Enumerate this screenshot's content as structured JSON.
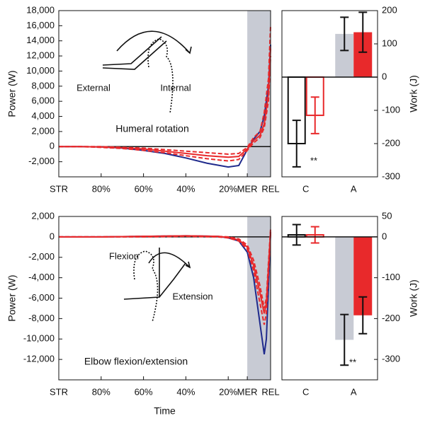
{
  "chart_data": [
    {
      "type": "line",
      "ylabel": "Power (W)",
      "annotations": [
        "External",
        "Internal",
        "Humeral rotation"
      ],
      "xlim": [
        0,
        100
      ],
      "ylim": [
        -4000,
        18000
      ],
      "xticks": [
        {
          "value": 0,
          "label": "STR"
        },
        {
          "value": 20,
          "label": "80%"
        },
        {
          "value": 40,
          "label": "60%"
        },
        {
          "value": 60,
          "label": "40%"
        },
        {
          "value": 80,
          "label": "20%"
        },
        {
          "value": 89,
          "label": "MER"
        },
        {
          "value": 100,
          "label": "REL"
        }
      ],
      "yticks": [
        {
          "value": -2000,
          "label": "-2,000"
        },
        0,
        {
          "value": 2000,
          "label": "2,000"
        },
        {
          "value": 4000,
          "label": "4,000"
        },
        {
          "value": 6000,
          "label": "6,000"
        },
        {
          "value": 8000,
          "label": "8,000"
        },
        {
          "value": 10000,
          "label": "10,000"
        },
        {
          "value": 12000,
          "label": "12,000"
        },
        {
          "value": 14000,
          "label": "14,000"
        },
        {
          "value": 16000,
          "label": "16,000"
        },
        {
          "value": 18000,
          "label": "18,000"
        }
      ],
      "shaded": [
        89,
        100
      ],
      "shade_color": "#c8cbd4",
      "x": [
        0,
        10,
        20,
        30,
        40,
        50,
        60,
        70,
        80,
        85,
        89,
        92,
        95,
        97,
        99,
        100
      ],
      "series": [
        {
          "color": "#1f2a8c",
          "dashed": false,
          "values": [
            0,
            0,
            -50,
            -200,
            -500,
            -900,
            -1500,
            -2200,
            -2700,
            -2500,
            -400,
            1000,
            2000,
            4000,
            8000,
            13500
          ]
        },
        {
          "color": "#e8292b",
          "dashed": true,
          "values": [
            0,
            0,
            0,
            -100,
            -200,
            -400,
            -600,
            -800,
            -1000,
            -900,
            -100,
            1200,
            2000,
            4500,
            9000,
            16000
          ]
        },
        {
          "color": "#e8292b",
          "dashed": true,
          "values": [
            0,
            0,
            -100,
            -250,
            -500,
            -800,
            -1200,
            -1600,
            -1900,
            -1700,
            -500,
            500,
            1200,
            2500,
            6000,
            12000
          ]
        },
        {
          "color": "#e8292b",
          "dashed": false,
          "values": [
            0,
            0,
            -50,
            -150,
            -300,
            -600,
            -900,
            -1200,
            -1400,
            -1300,
            -300,
            800,
            1500,
            3000,
            7000,
            13000
          ]
        }
      ]
    },
    {
      "type": "bar",
      "ylabel": "Work (J)",
      "categories": [
        "C",
        "A"
      ],
      "outlined": [
        true,
        false
      ],
      "ylim": [
        -300,
        200
      ],
      "yticks": [
        -300,
        -200,
        -100,
        0,
        100,
        200
      ],
      "annotations": [
        "**"
      ],
      "series": [
        {
          "color": "#111111",
          "fill": "#c8cbd4",
          "values": [
            -200,
            130
          ],
          "errors": [
            70,
            50
          ]
        },
        {
          "color": "#e8292b",
          "fill": "#e8292b",
          "values": [
            -115,
            135
          ],
          "errors": [
            55,
            60
          ]
        }
      ]
    },
    {
      "type": "line",
      "ylabel": "Power (W)",
      "xlabel": "Time",
      "annotations": [
        "Flexion",
        "Extension",
        "Elbow flexion/extension"
      ],
      "xlim": [
        0,
        100
      ],
      "ylim": [
        -14000,
        2000
      ],
      "xticks": [
        {
          "value": 0,
          "label": "STR"
        },
        {
          "value": 20,
          "label": "80%"
        },
        {
          "value": 40,
          "label": "60%"
        },
        {
          "value": 60,
          "label": "40%"
        },
        {
          "value": 80,
          "label": "20%"
        },
        {
          "value": 89,
          "label": "MER"
        },
        {
          "value": 100,
          "label": "REL"
        }
      ],
      "yticks": [
        {
          "value": -12000,
          "label": "-12,000"
        },
        {
          "value": -10000,
          "label": "-10,000"
        },
        {
          "value": -8000,
          "label": "-8,000"
        },
        {
          "value": -6000,
          "label": "-6,000"
        },
        {
          "value": -4000,
          "label": "-4,000"
        },
        {
          "value": -2000,
          "label": "-2,000"
        },
        0,
        {
          "value": 2000,
          "label": "2,000"
        }
      ],
      "shaded": [
        89,
        100
      ],
      "shade_color": "#c8cbd4",
      "x": [
        0,
        20,
        40,
        60,
        75,
        80,
        85,
        89,
        92,
        95,
        97,
        98,
        99,
        100
      ],
      "series": [
        {
          "color": "#1f2a8c",
          "dashed": false,
          "values": [
            0,
            0,
            50,
            100,
            50,
            -100,
            -400,
            -1500,
            -4000,
            -8500,
            -11500,
            -10000,
            -5000,
            500
          ]
        },
        {
          "color": "#e8292b",
          "dashed": true,
          "values": [
            0,
            0,
            50,
            100,
            50,
            0,
            -200,
            -800,
            -2300,
            -4800,
            -7000,
            -6000,
            -2500,
            800
          ]
        },
        {
          "color": "#e8292b",
          "dashed": true,
          "values": [
            0,
            0,
            0,
            50,
            0,
            -100,
            -400,
            -1200,
            -3300,
            -6500,
            -8600,
            -7500,
            -3500,
            300
          ]
        },
        {
          "color": "#e8292b",
          "dashed": false,
          "values": [
            0,
            0,
            50,
            100,
            50,
            -50,
            -300,
            -1000,
            -2800,
            -5500,
            -7500,
            -6500,
            -3000,
            500
          ]
        }
      ]
    },
    {
      "type": "bar",
      "ylabel": "Work (J)",
      "categories": [
        "C",
        "A"
      ],
      "outlined": [
        true,
        false
      ],
      "ylim": [
        -350,
        50
      ],
      "yticks": [
        -300,
        -200,
        -100,
        0,
        50
      ],
      "annotations": [
        "**"
      ],
      "series": [
        {
          "color": "#111111",
          "fill": "#c8cbd4",
          "values": [
            5,
            -252
          ],
          "errors": [
            25,
            62
          ]
        },
        {
          "color": "#e8292b",
          "fill": "#e8292b",
          "values": [
            5,
            -192
          ],
          "errors": [
            20,
            45
          ]
        }
      ]
    }
  ]
}
